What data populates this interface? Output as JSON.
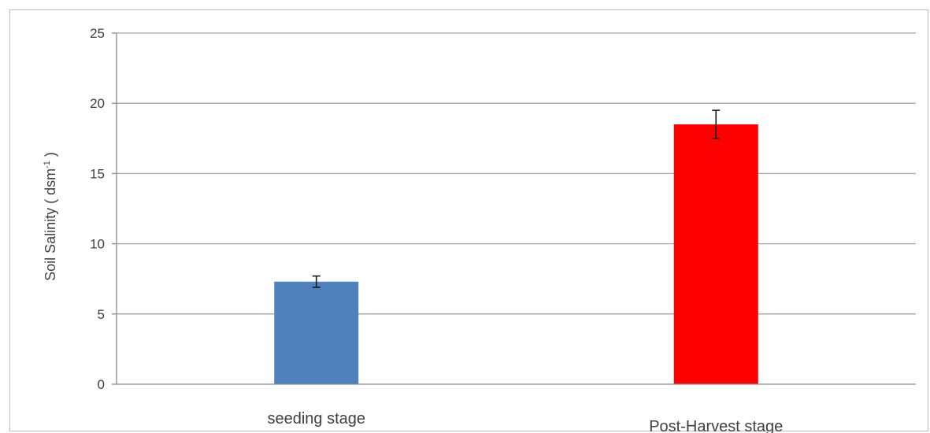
{
  "chart_data": {
    "type": "bar",
    "categories": [
      "seeding stage",
      "Post-Harvest stage"
    ],
    "values": [
      7.3,
      18.5
    ],
    "errors": [
      0.4,
      1.0
    ],
    "colors": [
      "#4f81bd",
      "#ff0000"
    ],
    "title": "",
    "xlabel": "",
    "ylabel": "Soil Salinity ( dsm",
    "ylabel_sup": "-1",
    "ylabel_end": " )",
    "ylim": [
      0,
      25
    ],
    "yticks": [
      "0",
      "5",
      "10",
      "15",
      "20",
      "25"
    ],
    "grid": true,
    "legend": "none"
  }
}
